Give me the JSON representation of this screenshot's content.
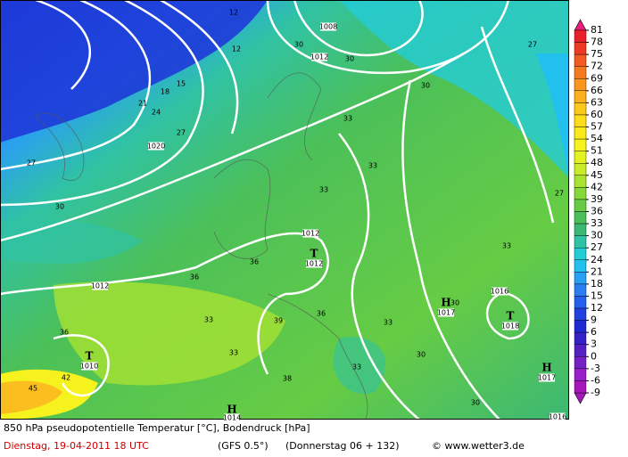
{
  "colorbar": {
    "ticks": [
      81,
      78,
      75,
      72,
      69,
      66,
      63,
      60,
      57,
      54,
      51,
      48,
      45,
      42,
      39,
      36,
      33,
      30,
      27,
      24,
      21,
      18,
      15,
      12,
      9,
      6,
      3,
      0,
      -3,
      -6,
      -9
    ],
    "colors": [
      "#e8207a",
      "#e8202c",
      "#ee3a24",
      "#f25a22",
      "#f47820",
      "#f89620",
      "#fbb01e",
      "#fdc81c",
      "#fddc1c",
      "#fbe91c",
      "#f6f21e",
      "#e4f224",
      "#c8ec2a",
      "#a8e232",
      "#86d83a",
      "#66cc44",
      "#4cc058",
      "#3cb874",
      "#30c2a4",
      "#24ccd8",
      "#22c0ee",
      "#2aa0f0",
      "#2a7ef0",
      "#2460ec",
      "#2040e0",
      "#1e2ad0",
      "#3420c4",
      "#5420c0",
      "#7420c4",
      "#9820c8",
      "#a418b8"
    ]
  },
  "map": {
    "labels": [
      "T",
      "1012",
      "H",
      "1017",
      "T",
      "1018",
      "H",
      "1017",
      "T",
      "1010",
      "H",
      "1014",
      "1008",
      "1012",
      "1020",
      "1012",
      "1012",
      "1016",
      "1016",
      "12",
      "12",
      "15",
      "18",
      "21",
      "24",
      "27",
      "27",
      "30",
      "30",
      "30",
      "30",
      "27",
      "27",
      "33",
      "33",
      "33",
      "36",
      "36",
      "33",
      "30",
      "36",
      "33",
      "39",
      "36",
      "33",
      "33",
      "30",
      "30",
      "45",
      "42",
      "38",
      "33"
    ]
  },
  "caption": {
    "line1": "850 hPa pseudopotentielle Temperatur [°C], Bodendruck [hPa]",
    "date": "Dienstag, 19-04-2011   18 UTC",
    "model": "(GFS 0.5°)",
    "run": "(Donnerstag 06 + 132)",
    "copyright": "© www.wetter3.de"
  }
}
